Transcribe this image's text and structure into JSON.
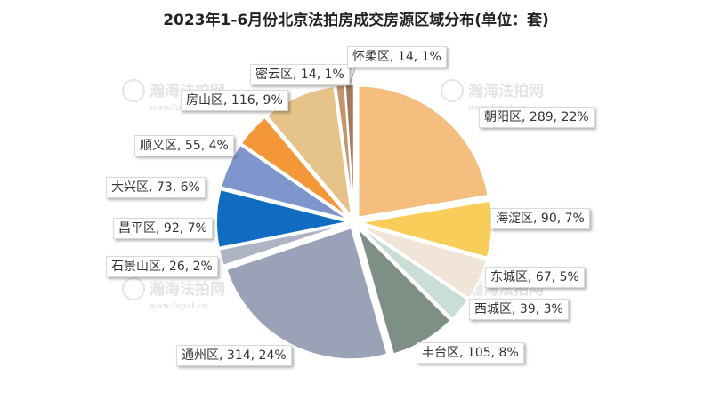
{
  "chart_data": {
    "type": "pie",
    "title": "2023年1-6月份北京法拍房成交房源区域分布(单位：套)",
    "slices": [
      {
        "name": "朝阳区",
        "value": 289,
        "percent": "22%",
        "color": "#F4BE7E"
      },
      {
        "name": "海淀区",
        "value": 90,
        "percent": "7%",
        "color": "#F9CD5A"
      },
      {
        "name": "东城区",
        "value": 67,
        "percent": "5%",
        "color": "#F1E5D8"
      },
      {
        "name": "西城区",
        "value": 39,
        "percent": "3%",
        "color": "#C9DED4"
      },
      {
        "name": "丰台区",
        "value": 105,
        "percent": "8%",
        "color": "#7E8F86"
      },
      {
        "name": "通州区",
        "value": 314,
        "percent": "24%",
        "color": "#9AA2B8"
      },
      {
        "name": "石景山区",
        "value": 26,
        "percent": "2%",
        "color": "#AEB4C3"
      },
      {
        "name": "昌平区",
        "value": 92,
        "percent": "7%",
        "color": "#0F6CC0"
      },
      {
        "name": "大兴区",
        "value": 73,
        "percent": "6%",
        "color": "#7E96CB"
      },
      {
        "name": "顺义区",
        "value": 55,
        "percent": "4%",
        "color": "#F39738"
      },
      {
        "name": "房山区",
        "value": 116,
        "percent": "9%",
        "color": "#E6C489"
      },
      {
        "name": "密云区",
        "value": 14,
        "percent": "1%",
        "color": "#C4946D"
      },
      {
        "name": "怀柔区",
        "value": 14,
        "percent": "1%",
        "color": "#A4795C"
      }
    ]
  }
}
